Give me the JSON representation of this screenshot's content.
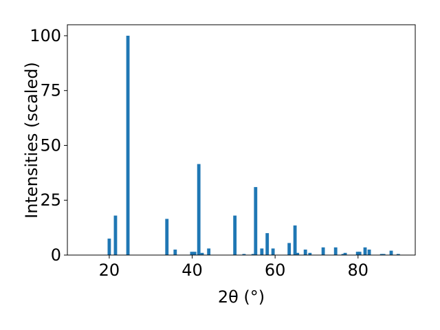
{
  "chart_data": {
    "type": "bar",
    "x_label": "2θ (°)",
    "y_label": "Intensities (scaled)",
    "x": [
      20.0,
      21.5,
      24.5,
      33.9,
      35.9,
      39.9,
      40.6,
      41.6,
      42.4,
      44.0,
      50.3,
      52.5,
      54.7,
      55.3,
      56.8,
      58.1,
      59.5,
      63.4,
      64.8,
      65.4,
      67.3,
      68.4,
      71.6,
      74.6,
      76.4,
      76.9,
      79.9,
      80.4,
      81.7,
      82.7,
      85.7,
      86.2,
      88.0,
      89.7
    ],
    "values": [
      7.5,
      18,
      100,
      16.5,
      2.5,
      1.5,
      1.5,
      41.5,
      1,
      3,
      18,
      0.5,
      0.5,
      31,
      3,
      10,
      3,
      5.5,
      13.5,
      1,
      2.5,
      1,
      3.5,
      3.5,
      0.5,
      1,
      1.5,
      1.5,
      3.5,
      2.5,
      0.5,
      0.5,
      2,
      0.5
    ],
    "color": "#1f77b4",
    "xlim": [
      9.9,
      93.8
    ],
    "xticks": [
      20,
      40,
      60,
      80
    ],
    "ylim": [
      0,
      105
    ],
    "yticks": [
      0,
      25,
      50,
      75,
      100
    ]
  }
}
